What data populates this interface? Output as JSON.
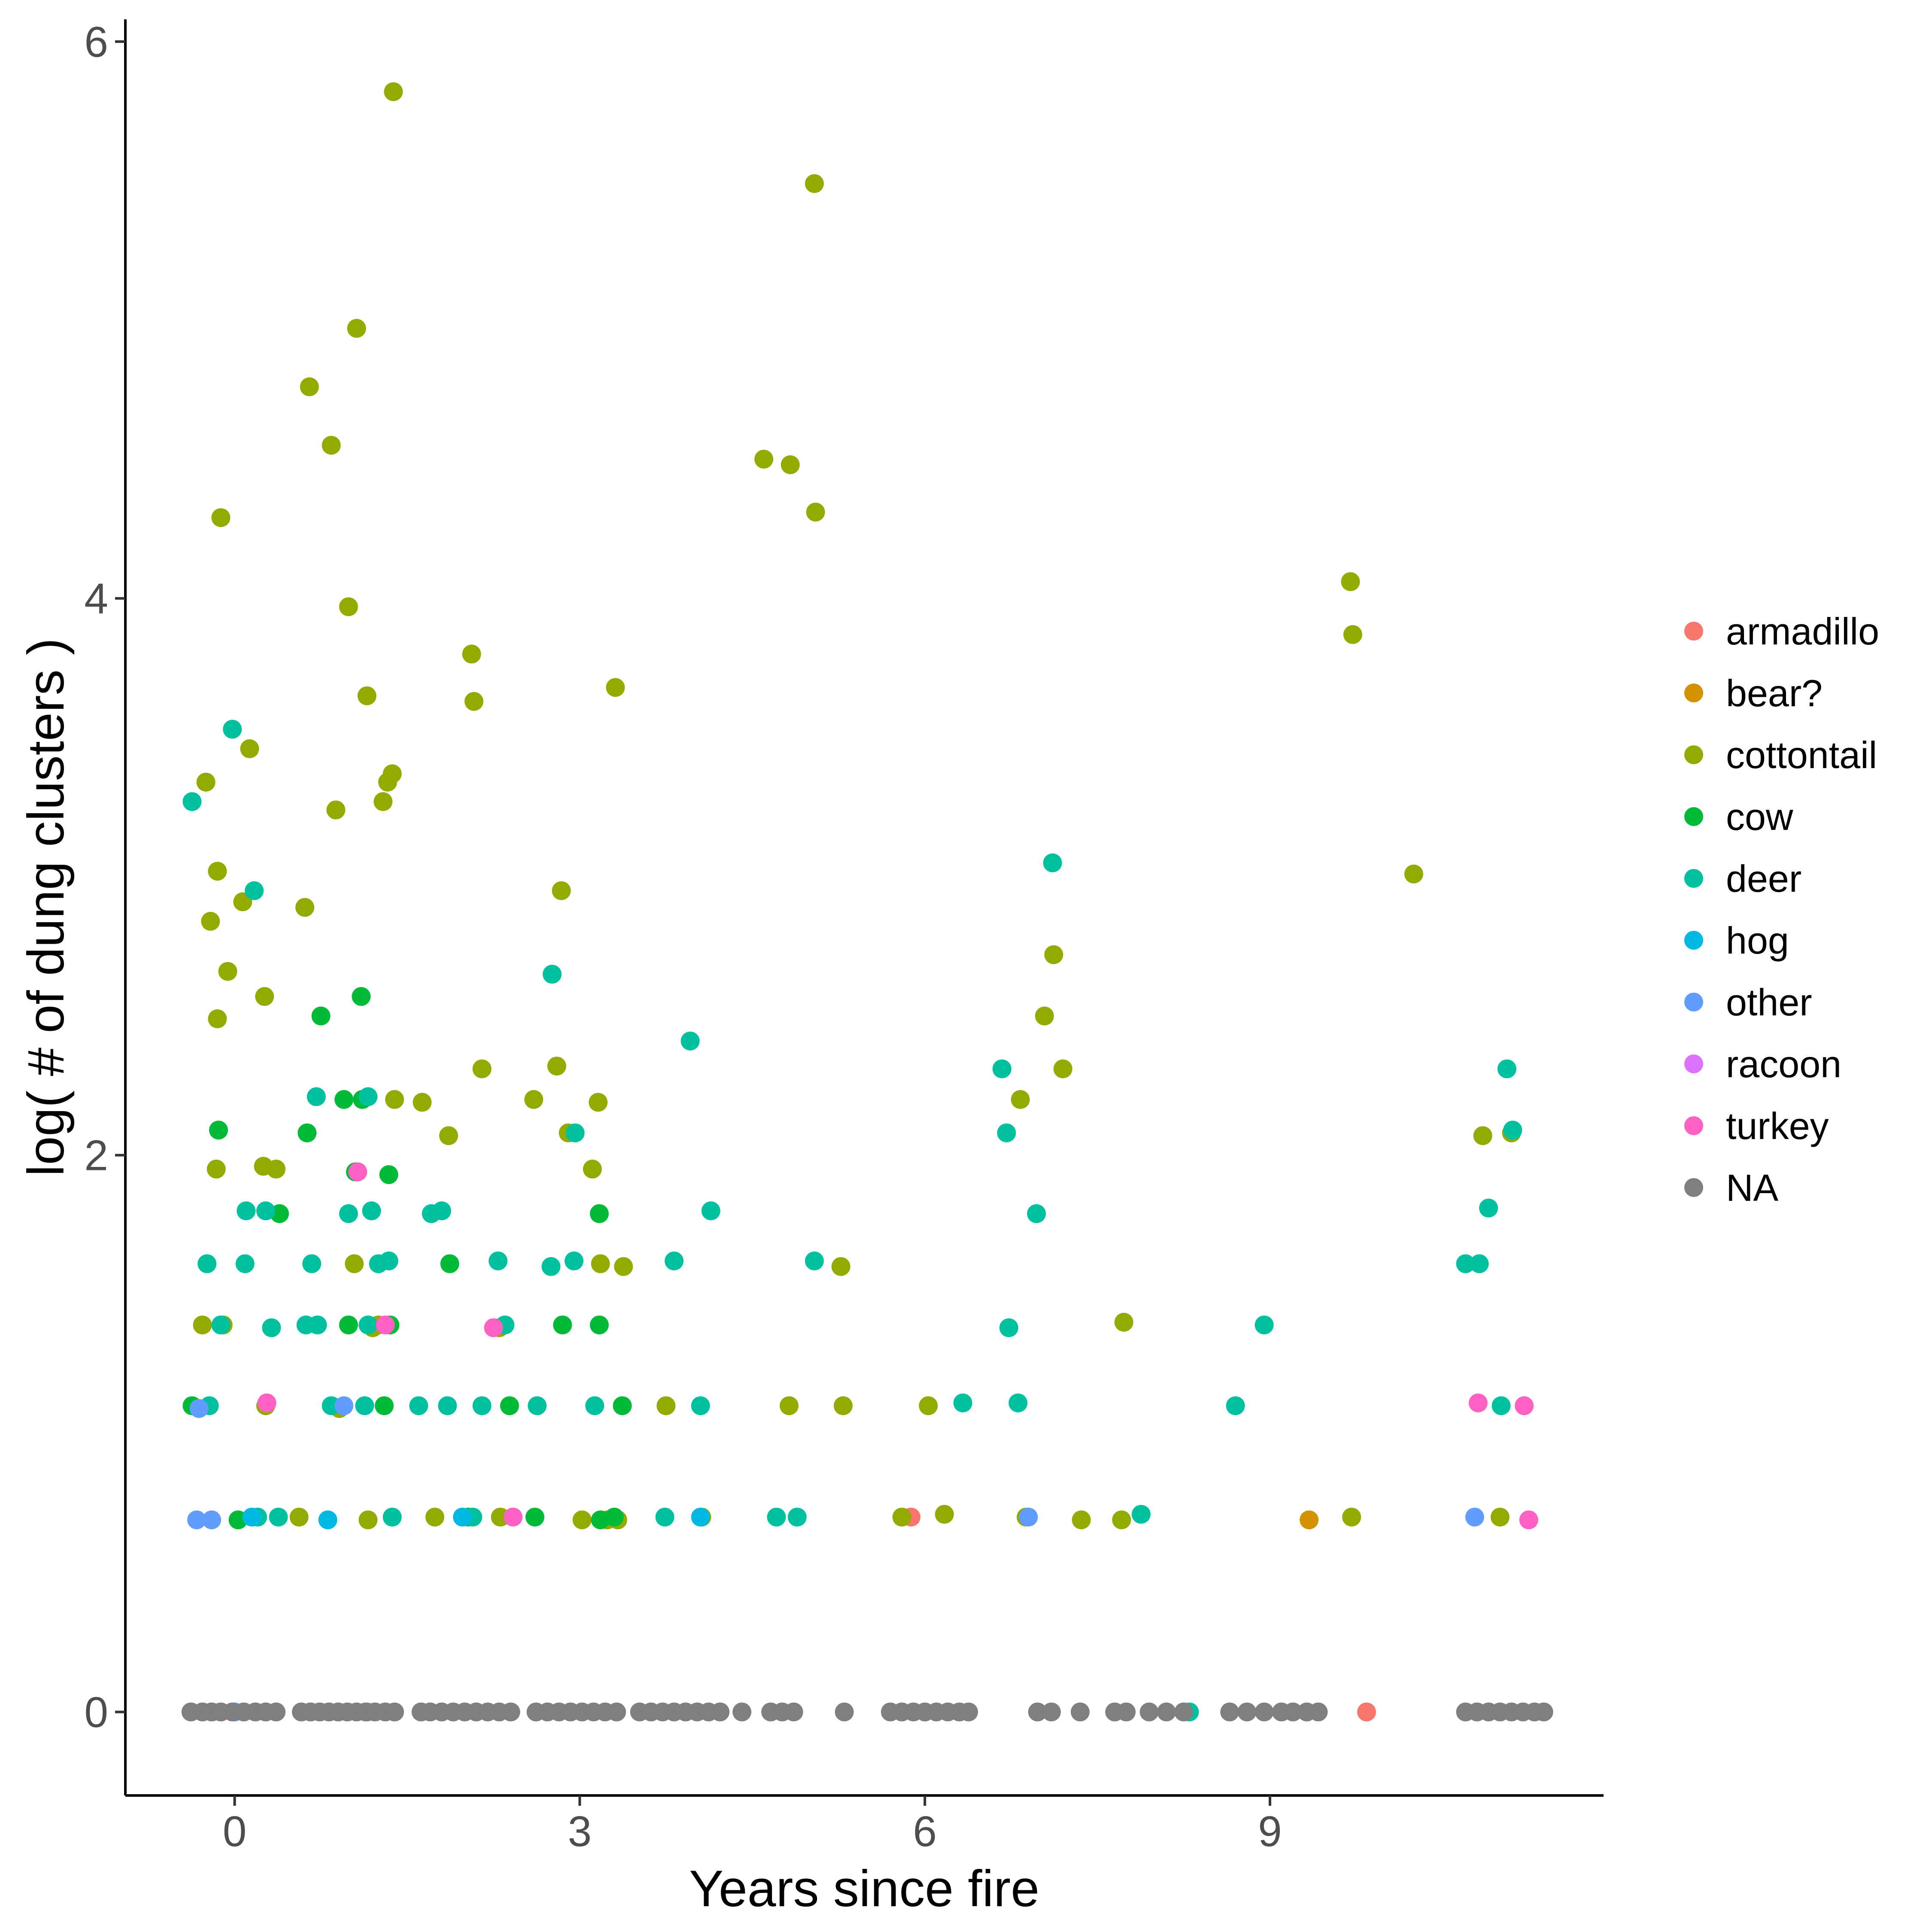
{
  "chart_data": {
    "type": "scatter",
    "title": "",
    "xlabel": "Years since fire",
    "ylabel": "log( # of dung clusters )",
    "xlim": [
      -0.95,
      11.9
    ],
    "ylim": [
      -0.3,
      6.08
    ],
    "x_ticks": [
      0,
      3,
      6,
      9
    ],
    "y_ticks": [
      0,
      2,
      4,
      6
    ],
    "grid": false,
    "legend_position": "right",
    "legend_labels": [
      "armadillo",
      "bear?",
      "cottontail",
      "cow",
      "deer",
      "hog",
      "other",
      "racoon",
      "turkey",
      "NA"
    ],
    "colors": {
      "armadillo": "#F8766D",
      "bear?": "#D39200",
      "cottontail": "#93AA00",
      "cow": "#00BA38",
      "deer": "#00C19F",
      "hog": "#00B9E3",
      "other": "#619CFF",
      "racoon": "#DB72FB",
      "turkey": "#FF61C3",
      "NA": "#7F7F7F"
    },
    "series": [
      {
        "name": "armadillo",
        "x": [
          5.88,
          9.84
        ],
        "y": [
          0.7,
          0.0
        ]
      },
      {
        "name": "bear?",
        "x": [
          9.34
        ],
        "y": [
          0.69
        ]
      },
      {
        "name": "cottontail",
        "x": [
          1.38,
          5.04,
          1.06,
          0.65,
          0.84,
          4.6,
          4.83,
          5.05,
          -0.12,
          0.99,
          9.7,
          9.72,
          2.06,
          3.31,
          1.15,
          2.08,
          0.13,
          -0.25,
          1.37,
          1.33,
          0.88,
          1.29,
          -0.15,
          2.84,
          10.25,
          0.07,
          -0.21,
          0.61,
          7.12,
          -0.06,
          0.26,
          7.04,
          -0.15,
          2.15,
          2.8,
          7.2,
          6.83,
          2.6,
          1.39,
          3.16,
          1.63,
          2.9,
          1.86,
          10.85,
          11.1,
          -0.16,
          3.11,
          0.25,
          0.36,
          1.04,
          3.18,
          5.27,
          3.38,
          1.25,
          -0.28,
          -0.1,
          2.3,
          7.73,
          1.2,
          4.82,
          5.29,
          6.03,
          3.75,
          0.91,
          0.27,
          1.16,
          3.24,
          5.8,
          6.17,
          6.88,
          7.36,
          7.71,
          9.71,
          11.0,
          0.56,
          1.74,
          2.31,
          3.02,
          3.33,
          4.06
        ],
        "y": [
          5.82,
          5.49,
          4.97,
          4.76,
          4.55,
          4.5,
          4.48,
          4.31,
          4.29,
          3.97,
          4.06,
          3.87,
          3.8,
          3.68,
          3.65,
          3.63,
          3.46,
          3.34,
          3.37,
          3.34,
          3.24,
          3.27,
          3.02,
          2.95,
          3.01,
          2.91,
          2.84,
          2.89,
          2.72,
          2.66,
          2.57,
          2.5,
          2.49,
          2.31,
          2.32,
          2.31,
          2.2,
          2.2,
          2.2,
          2.19,
          2.19,
          2.08,
          2.07,
          2.07,
          2.08,
          1.95,
          1.95,
          1.96,
          1.95,
          1.61,
          1.61,
          1.6,
          1.6,
          1.39,
          1.39,
          1.39,
          1.38,
          1.4,
          1.38,
          1.1,
          1.1,
          1.1,
          1.1,
          1.09,
          1.1,
          0.69,
          0.69,
          0.7,
          0.71,
          0.7,
          0.69,
          0.69,
          0.7,
          0.7,
          0.7,
          0.7,
          0.7,
          0.69,
          0.69,
          0.7
        ]
      },
      {
        "name": "cow",
        "x": [
          0.75,
          1.1,
          -0.14,
          0.63,
          0.95,
          1.11,
          1.34,
          1.05,
          0.39,
          3.17,
          1.87,
          0.99,
          2.85,
          3.17,
          1.35,
          -0.37,
          1.3,
          2.39,
          3.37,
          0.03,
          2.03,
          2.61,
          3.3,
          3.18
        ],
        "y": [
          2.5,
          2.57,
          2.09,
          2.08,
          2.2,
          2.2,
          1.93,
          1.94,
          1.79,
          1.79,
          1.61,
          1.39,
          1.39,
          1.39,
          1.39,
          1.1,
          1.1,
          1.1,
          1.1,
          0.69,
          0.7,
          0.7,
          0.7,
          0.69
        ]
      },
      {
        "name": "deer",
        "x": [
          -0.02,
          -0.37,
          0.17,
          2.76,
          7.11,
          3.96,
          0.71,
          1.16,
          6.67,
          11.06,
          6.71,
          2.96,
          11.11,
          0.1,
          0.27,
          0.99,
          1.19,
          1.71,
          1.8,
          4.14,
          10.9,
          6.97,
          -0.24,
          0.09,
          0.67,
          1.25,
          1.34,
          2.29,
          2.75,
          2.95,
          3.82,
          5.04,
          10.7,
          10.82,
          -0.12,
          0.32,
          0.62,
          0.72,
          1.16,
          2.35,
          6.73,
          8.95,
          -0.22,
          0.84,
          1.13,
          1.6,
          1.85,
          2.15,
          2.63,
          3.13,
          4.05,
          6.33,
          6.81,
          8.7,
          11.01,
          0.2,
          4.71,
          4.89,
          7.88,
          0.38,
          1.37,
          2.07,
          3.74,
          8.3
        ],
        "y": [
          3.53,
          3.27,
          2.95,
          2.65,
          3.05,
          2.41,
          2.21,
          2.21,
          2.31,
          2.31,
          2.08,
          2.08,
          2.09,
          1.8,
          1.8,
          1.79,
          1.8,
          1.79,
          1.8,
          1.8,
          1.81,
          1.79,
          1.61,
          1.61,
          1.61,
          1.61,
          1.62,
          1.62,
          1.6,
          1.62,
          1.62,
          1.62,
          1.61,
          1.61,
          1.39,
          1.38,
          1.39,
          1.39,
          1.39,
          1.39,
          1.38,
          1.39,
          1.1,
          1.1,
          1.1,
          1.1,
          1.1,
          1.1,
          1.1,
          1.1,
          1.1,
          1.11,
          1.11,
          1.1,
          1.1,
          0.7,
          0.7,
          0.7,
          0.71,
          0.7,
          0.7,
          0.7,
          0.7,
          0.0
        ]
      },
      {
        "name": "hog",
        "x": [
          0.15,
          0.81,
          1.98,
          4.05
        ],
        "y": [
          0.7,
          0.69,
          0.7,
          0.7
        ]
      },
      {
        "name": "other",
        "x": [
          -0.33,
          -0.2,
          -0.31,
          0.95,
          10.78,
          6.9,
          0.0,
          1.15
        ],
        "y": [
          0.69,
          0.69,
          1.09,
          1.1,
          0.7,
          0.7,
          0.0,
          0.0
        ]
      },
      {
        "name": "racoon",
        "x": [],
        "y": []
      },
      {
        "name": "turkey",
        "x": [
          1.07,
          2.25,
          0.28,
          1.31,
          2.42,
          10.81,
          11.21,
          11.25
        ],
        "y": [
          1.94,
          1.38,
          1.11,
          1.39,
          0.7,
          1.11,
          1.1,
          0.69
        ]
      },
      {
        "name": "NA",
        "x": [
          -0.38,
          -0.28,
          -0.2,
          -0.12,
          -0.02,
          0.08,
          0.18,
          0.27,
          0.36,
          0.58,
          0.66,
          0.74,
          0.82,
          0.9,
          0.98,
          1.06,
          1.14,
          1.22,
          1.31,
          1.39,
          1.62,
          1.7,
          1.8,
          1.9,
          2.0,
          2.1,
          2.2,
          2.3,
          2.4,
          2.62,
          2.72,
          2.82,
          2.92,
          3.02,
          3.12,
          3.22,
          3.32,
          3.52,
          3.62,
          3.72,
          3.82,
          3.92,
          4.02,
          4.12,
          4.22,
          4.41,
          4.66,
          4.76,
          4.86,
          5.3,
          5.7,
          5.8,
          5.9,
          6.0,
          6.1,
          6.2,
          6.3,
          6.38,
          6.98,
          7.1,
          7.35,
          7.65,
          7.75,
          7.95,
          8.1,
          8.25,
          8.65,
          8.8,
          8.95,
          9.1,
          9.2,
          9.32,
          9.42,
          10.7,
          10.8,
          10.9,
          11.0,
          11.1,
          11.2,
          11.3,
          11.38
        ],
        "y": [
          0.0,
          0.0,
          0.0,
          0.0,
          0.0,
          0.0,
          0.0,
          0.0,
          0.0,
          0.0,
          0.0,
          0.0,
          0.0,
          0.0,
          0.0,
          0.0,
          0.0,
          0.0,
          0.0,
          0.0,
          0.0,
          0.0,
          0.0,
          0.0,
          0.0,
          0.0,
          0.0,
          0.0,
          0.0,
          0.0,
          0.0,
          0.0,
          0.0,
          0.0,
          0.0,
          0.0,
          0.0,
          0.0,
          0.0,
          0.0,
          0.0,
          0.0,
          0.0,
          0.0,
          0.0,
          0.0,
          0.0,
          0.0,
          0.0,
          0.0,
          0.0,
          0.0,
          0.0,
          0.0,
          0.0,
          0.0,
          0.0,
          0.0,
          0.0,
          0.0,
          0.0,
          0.0,
          0.0,
          0.0,
          0.0,
          0.0,
          0.0,
          0.0,
          0.0,
          0.0,
          0.0,
          0.0,
          0.0,
          0.0,
          0.0,
          0.0,
          0.0,
          0.0,
          0.0,
          0.0,
          0.0
        ]
      }
    ]
  }
}
